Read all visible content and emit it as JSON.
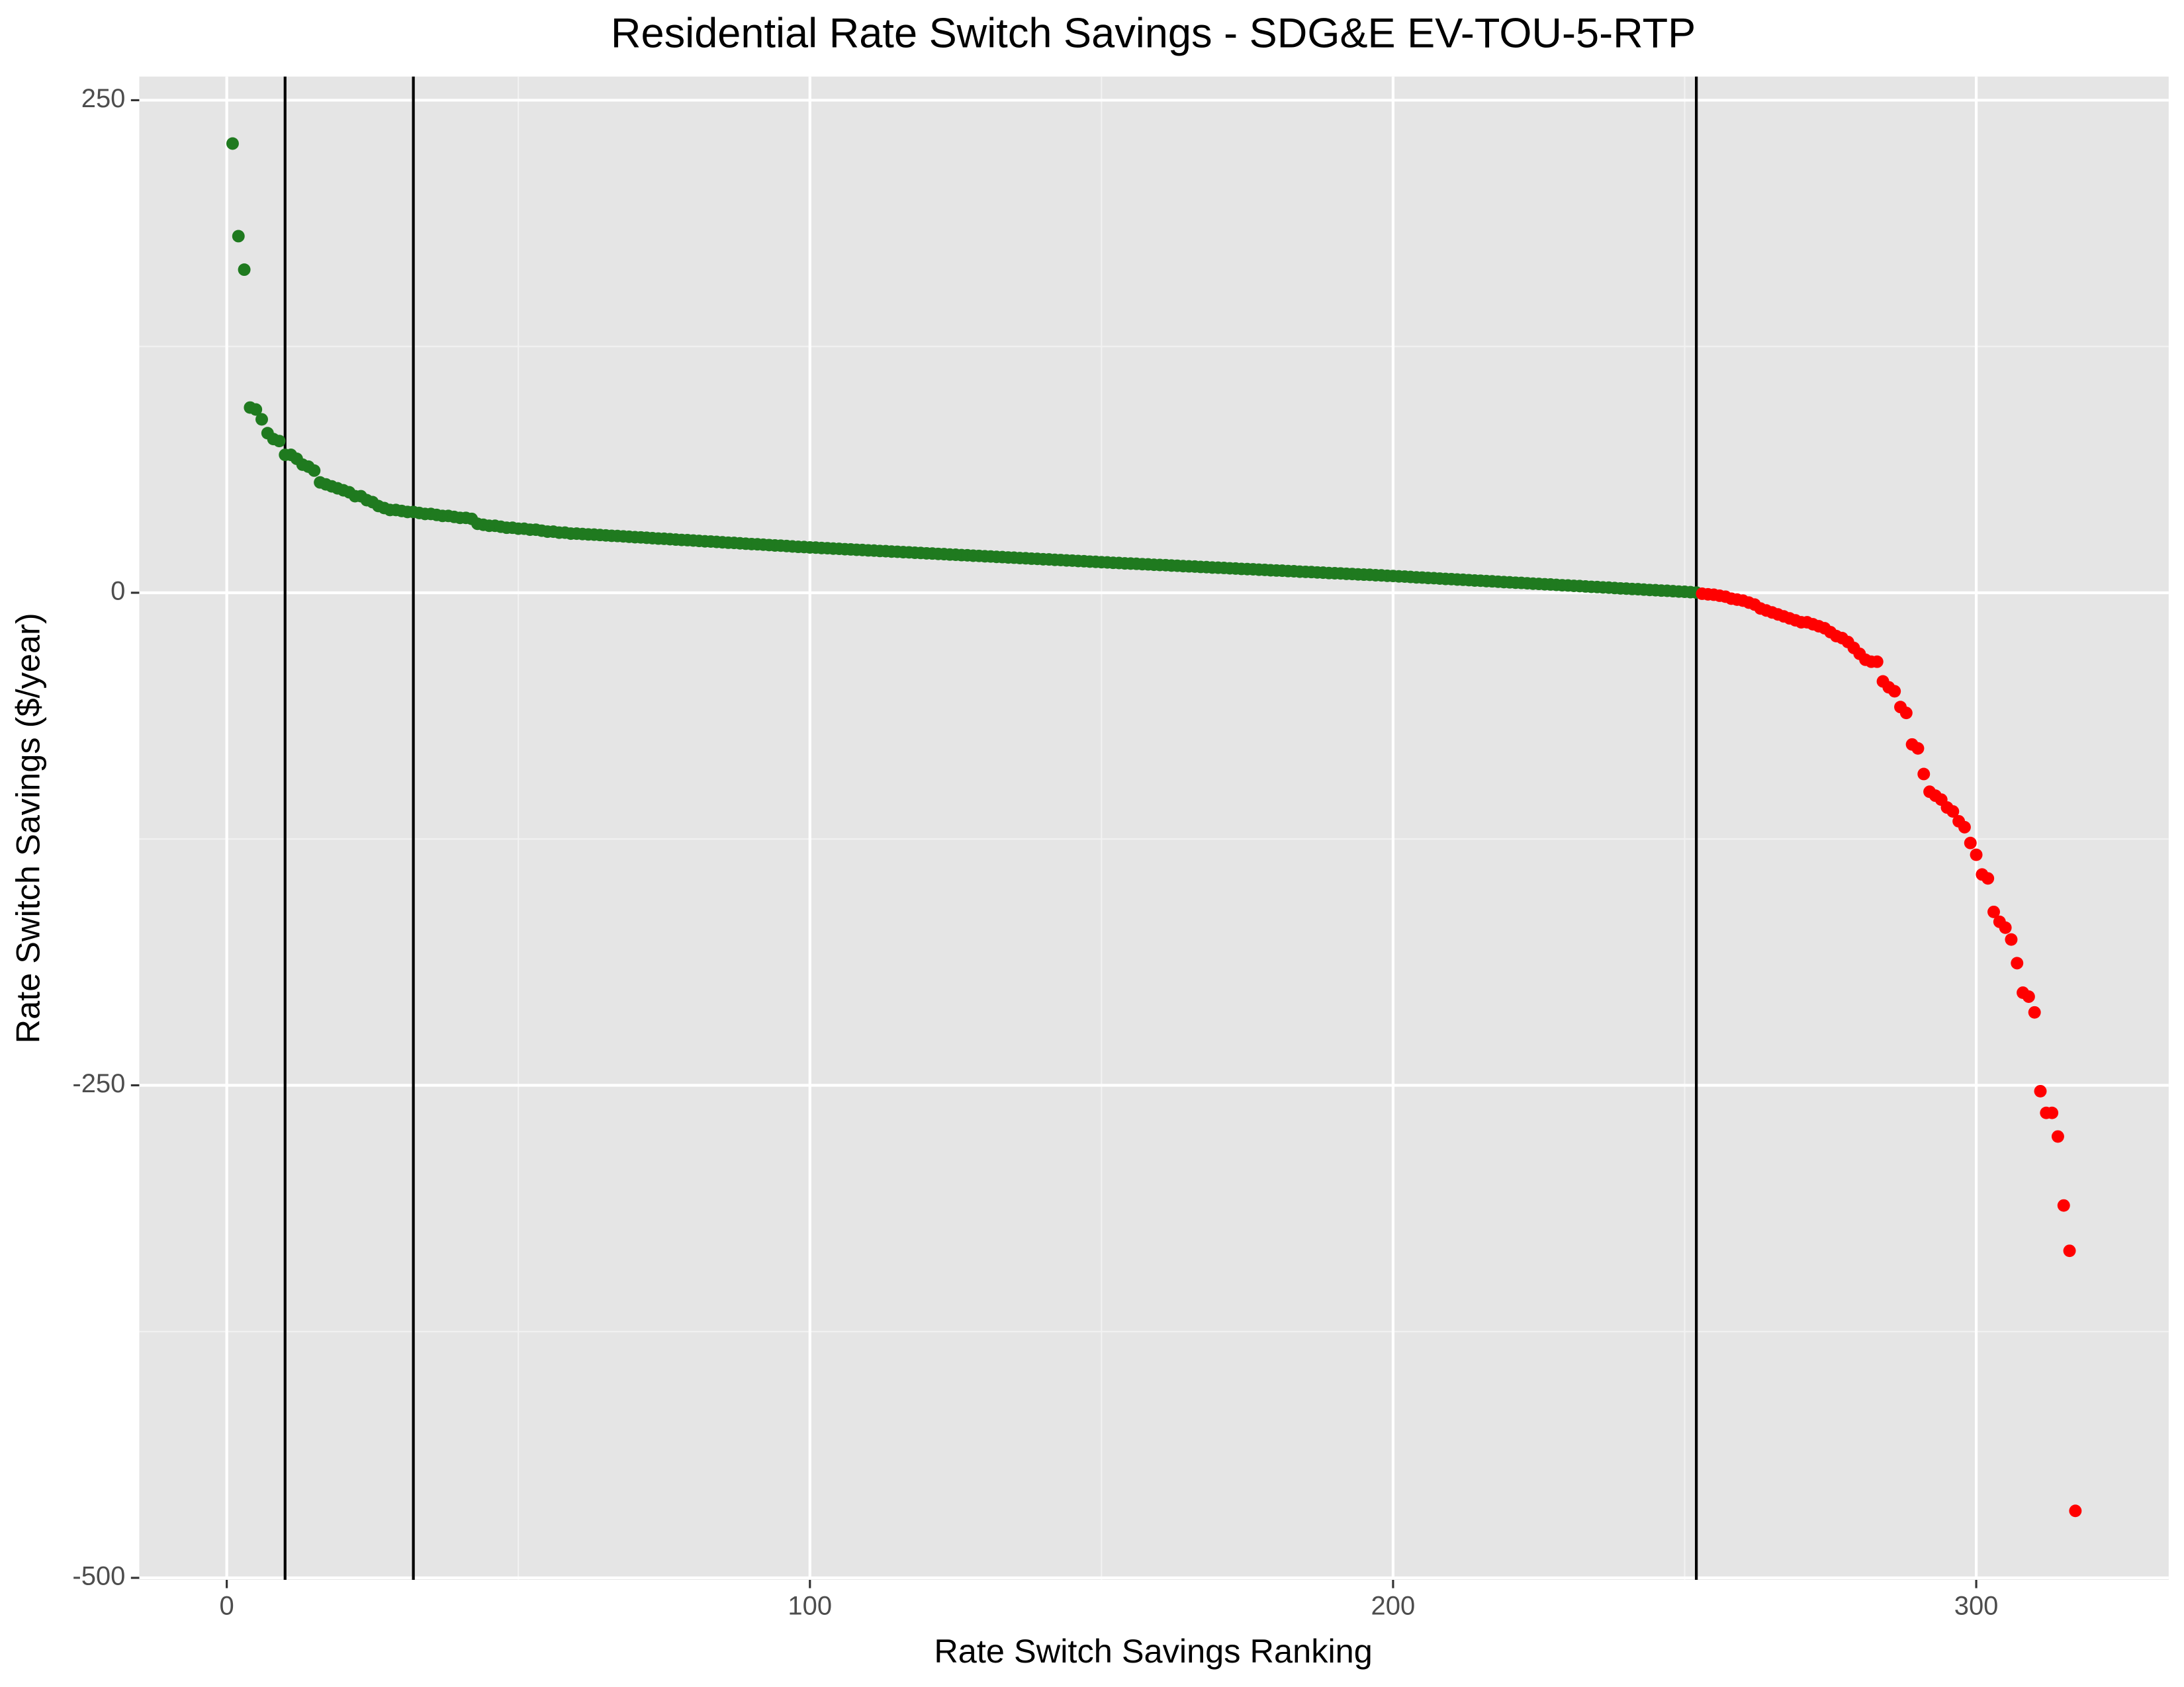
{
  "chart_data": {
    "type": "scatter",
    "title": "Residential Rate Switch Savings - SDG&E EV-TOU-5-RTP",
    "x_label": "Rate Switch Savings Ranking",
    "y_label": "Rate Switch Savings ($/year)",
    "xlim": [
      -15,
      333
    ],
    "ylim": [
      -501,
      262
    ],
    "xticks": [
      0,
      100,
      200,
      300
    ],
    "yticks": [
      -500,
      -250,
      0,
      250
    ],
    "x_minor_grid": [
      50,
      150,
      250
    ],
    "y_minor_grid": [
      -375,
      -125,
      125
    ],
    "vlines": [
      10,
      32,
      252
    ],
    "grid": true,
    "color": "#1f7a1f",
    "negative_color": "#ff0000",
    "x": [
      1,
      2,
      3,
      4,
      5,
      6,
      7,
      8,
      9,
      10,
      11,
      12,
      13,
      14,
      15,
      16,
      17,
      18,
      19,
      20,
      21,
      22,
      23,
      24,
      25,
      26,
      27,
      28,
      29,
      30,
      31,
      32,
      33,
      34,
      35,
      36,
      37,
      38,
      39,
      40,
      41,
      42,
      43,
      44,
      45,
      46,
      47,
      48,
      49,
      50,
      51,
      52,
      53,
      54,
      55,
      56,
      57,
      58,
      59,
      60,
      61,
      62,
      63,
      64,
      65,
      66,
      67,
      68,
      69,
      70,
      71,
      72,
      73,
      74,
      75,
      76,
      77,
      78,
      79,
      80,
      81,
      82,
      83,
      84,
      85,
      86,
      87,
      88,
      89,
      90,
      91,
      92,
      93,
      94,
      95,
      96,
      97,
      98,
      99,
      100,
      101,
      102,
      103,
      104,
      105,
      106,
      107,
      108,
      109,
      110,
      111,
      112,
      113,
      114,
      115,
      116,
      117,
      118,
      119,
      120,
      121,
      122,
      123,
      124,
      125,
      126,
      127,
      128,
      129,
      130,
      131,
      132,
      133,
      134,
      135,
      136,
      137,
      138,
      139,
      140,
      141,
      142,
      143,
      144,
      145,
      146,
      147,
      148,
      149,
      150,
      151,
      152,
      153,
      154,
      155,
      156,
      157,
      158,
      159,
      160,
      161,
      162,
      163,
      164,
      165,
      166,
      167,
      168,
      169,
      170,
      171,
      172,
      173,
      174,
      175,
      176,
      177,
      178,
      179,
      180,
      181,
      182,
      183,
      184,
      185,
      186,
      187,
      188,
      189,
      190,
      191,
      192,
      193,
      194,
      195,
      196,
      197,
      198,
      199,
      200,
      201,
      202,
      203,
      204,
      205,
      206,
      207,
      208,
      209,
      210,
      211,
      212,
      213,
      214,
      215,
      216,
      217,
      218,
      219,
      220,
      221,
      222,
      223,
      224,
      225,
      226,
      227,
      228,
      229,
      230,
      231,
      232,
      233,
      234,
      235,
      236,
      237,
      238,
      239,
      240,
      241,
      242,
      243,
      244,
      245,
      246,
      247,
      248,
      249,
      250,
      251,
      252,
      253,
      254,
      255,
      256,
      257,
      258,
      259,
      260,
      261,
      262,
      263,
      264,
      265,
      266,
      267,
      268,
      269,
      270,
      271,
      272,
      273,
      274,
      275,
      276,
      277,
      278,
      279,
      280,
      281,
      282,
      283,
      284,
      285,
      286,
      287,
      288,
      289,
      290,
      291,
      292,
      293,
      294,
      295,
      296,
      297,
      298,
      299,
      300,
      301,
      302,
      303,
      304,
      305,
      306,
      307,
      308,
      309,
      310,
      311,
      312,
      313,
      314,
      315,
      316,
      317
    ],
    "values": [
      228,
      181,
      164,
      94,
      93,
      88,
      81,
      78,
      77,
      70,
      70,
      68,
      65,
      64,
      62,
      56,
      55,
      54,
      53,
      52,
      51,
      49,
      49,
      47,
      46,
      44,
      43,
      42,
      42,
      41.5,
      41,
      41,
      40.5,
      40,
      40,
      39.5,
      39,
      39,
      38.5,
      38,
      38,
      37.5,
      35,
      34.5,
      34,
      34,
      33.5,
      33,
      33,
      32.5,
      32.5,
      32,
      32,
      31.5,
      31,
      31,
      30.5,
      30.5,
      30,
      30,
      29.8,
      29.6,
      29.5,
      29.3,
      29.1,
      28.9,
      28.8,
      28.6,
      28.4,
      28.2,
      28.1,
      27.9,
      27.7,
      27.5,
      27.4,
      27.2,
      27.0,
      26.8,
      26.7,
      26.5,
      26.3,
      26.1,
      26.0,
      25.8,
      25.6,
      25.4,
      25.3,
      25.1,
      24.9,
      24.7,
      24.6,
      24.4,
      24.2,
      24.0,
      23.9,
      23.7,
      23.5,
      23.3,
      23.2,
      23.0,
      22.9,
      22.7,
      22.6,
      22.4,
      22.3,
      22.1,
      22.0,
      21.8,
      21.7,
      21.5,
      21.4,
      21.2,
      21.1,
      20.9,
      20.8,
      20.6,
      20.5,
      20.3,
      20.2,
      20.0,
      19.9,
      19.7,
      19.6,
      19.4,
      19.3,
      19.1,
      19.0,
      18.8,
      18.7,
      18.5,
      18.4,
      18.2,
      18.1,
      17.9,
      17.8,
      17.6,
      17.5,
      17.3,
      17.2,
      17.0,
      16.9,
      16.7,
      16.6,
      16.4,
      16.3,
      16.1,
      16.0,
      15.8,
      15.7,
      15.5,
      15.4,
      15.2,
      15.1,
      14.9,
      14.8,
      14.7,
      14.5,
      14.4,
      14.2,
      14.1,
      14.0,
      13.8,
      13.7,
      13.5,
      13.4,
      13.3,
      13.1,
      13.0,
      12.8,
      12.7,
      12.6,
      12.4,
      12.3,
      12.1,
      12.0,
      11.9,
      11.7,
      11.6,
      11.4,
      11.3,
      11.2,
      11.0,
      10.9,
      10.7,
      10.6,
      10.5,
      10.3,
      10.2,
      10.0,
      9.9,
      9.8,
      9.6,
      9.5,
      9.3,
      9.2,
      9.1,
      8.9,
      8.8,
      8.6,
      8.5,
      8.3,
      8.2,
      8.0,
      7.8,
      7.7,
      7.5,
      7.4,
      7.2,
      7.0,
      6.9,
      6.7,
      6.6,
      6.4,
      6.2,
      6.1,
      5.9,
      5.8,
      5.6,
      5.4,
      5.3,
      5.1,
      5.0,
      4.8,
      4.6,
      4.5,
      4.3,
      4.2,
      4.0,
      3.8,
      3.7,
      3.5,
      3.4,
      3.2,
      3.0,
      2.9,
      2.7,
      2.6,
      2.4,
      2.2,
      2.1,
      1.9,
      1.8,
      1.6,
      1.4,
      1.3,
      1.1,
      1.0,
      0.8,
      0.6,
      0.5,
      0.3,
      0.1,
      -0.5,
      -0.8,
      -1,
      -1.5,
      -2,
      -3,
      -3.5,
      -4,
      -5,
      -6,
      -8,
      -9,
      -10,
      -11,
      -12,
      -13,
      -14,
      -15,
      -15,
      -16,
      -17,
      -18,
      -20,
      -22,
      -23,
      -25,
      -28,
      -31,
      -34,
      -35,
      -35,
      -45,
      -48,
      -50,
      -58,
      -61,
      -77,
      -79,
      -92,
      -101,
      -103,
      -105,
      -109,
      -111,
      -116,
      -119,
      -127,
      -133,
      -143,
      -145,
      -162,
      -167,
      -170,
      -176,
      -188,
      -203,
      -205,
      -213,
      -253,
      -264,
      -264,
      -276,
      -311,
      -334,
      -466
    ]
  }
}
